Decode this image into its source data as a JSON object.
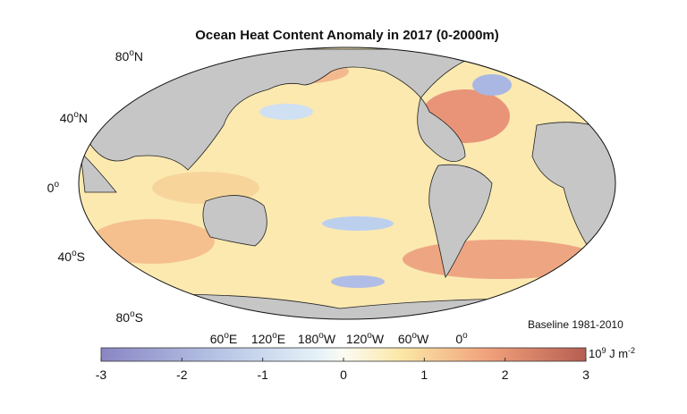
{
  "title": "Ocean Heat Content Anomaly in 2017 (0-2000m)",
  "latitude_labels": [
    {
      "degrees": "80",
      "mark": "o",
      "hemisphere": "N"
    },
    {
      "degrees": "40",
      "mark": "o",
      "hemisphere": "N"
    },
    {
      "degrees": "0",
      "mark": "o"
    },
    {
      "degrees": "40",
      "mark": "o",
      "hemisphere": "S"
    },
    {
      "degrees": "80",
      "mark": "o",
      "hemisphere": "S"
    }
  ],
  "longitude_labels": [
    {
      "degrees": "60",
      "mark": "o",
      "hemisphere": "E"
    },
    {
      "degrees": "120",
      "mark": "o",
      "hemisphere": "E"
    },
    {
      "degrees": "180",
      "mark": "o",
      "hemisphere": "W"
    },
    {
      "degrees": "120",
      "mark": "o",
      "hemisphere": "W"
    },
    {
      "degrees": "60",
      "mark": "o",
      "hemisphere": "W"
    },
    {
      "degrees": "0",
      "mark": "o"
    }
  ],
  "baseline": "Baseline 1981-2010",
  "colorbar": {
    "min": -3,
    "max": 3,
    "ticks": [
      -3,
      -2,
      -1,
      0,
      1,
      2,
      3
    ],
    "unit": {
      "base": "10",
      "exponent": "9",
      "text": " J m",
      "exponent2": "-2"
    }
  }
}
